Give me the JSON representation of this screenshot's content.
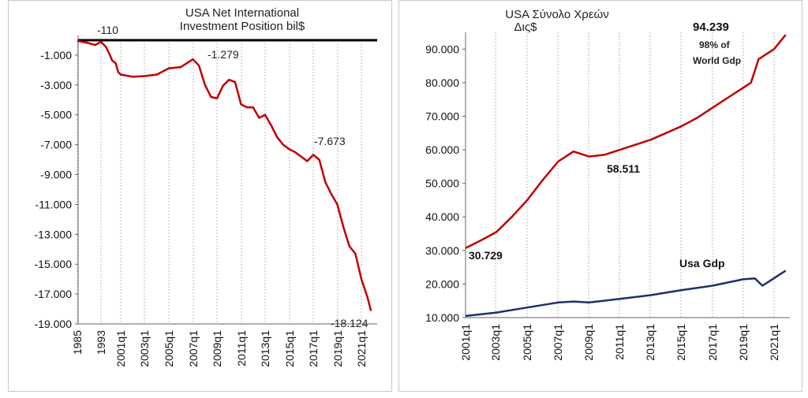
{
  "chart_data": [
    {
      "type": "line",
      "title_lines": [
        "USA    Net   International",
        "Investment  Position   bil$"
      ],
      "xlabel": "",
      "ylabel": "",
      "ylim": [
        -19000,
        0
      ],
      "y_ticks": [
        -1000,
        -3000,
        -5000,
        -7000,
        -9000,
        -11000,
        -13000,
        -15000,
        -17000,
        -19000
      ],
      "y_tick_labels": [
        "-1.000",
        "-3.000",
        "-5.000",
        "-7.000",
        "-9.000",
        "-11.000",
        "-13.000",
        "-15.000",
        "-17.000",
        "-19.000"
      ],
      "x_tick_labels": [
        "1985",
        "1993",
        "2001q1",
        "2003q1",
        "2005q1",
        "2007q1",
        "2009q1",
        "2011q1",
        "2013q1",
        "2015q1",
        "2017q1",
        "2019q1",
        "2021q1"
      ],
      "grid": "vertical",
      "annotations": [
        "-110",
        "-1.279",
        "-7.673",
        "-18.124"
      ],
      "colors": {
        "series": "#c00000",
        "zero_line": "#000000",
        "grid": "#bbbbbb"
      },
      "series": [
        {
          "points": [
            [
              1985,
              -50
            ],
            [
              1988,
              -160
            ],
            [
              1991,
              -320
            ],
            [
              1993,
              -110
            ],
            [
              1995,
              -450
            ],
            [
              1996.5,
              -950
            ],
            [
              1997.5,
              -1350
            ],
            [
              1999,
              -1550
            ],
            [
              2000,
              -2150
            ],
            [
              2001,
              -2300
            ],
            [
              2002,
              -2450
            ],
            [
              2003,
              -2400
            ],
            [
              2004,
              -2300
            ],
            [
              2005,
              -1880
            ],
            [
              2006,
              -1800
            ],
            [
              2007,
              -1279
            ],
            [
              2007.5,
              -1700
            ],
            [
              2008,
              -3000
            ],
            [
              2008.5,
              -3800
            ],
            [
              2009,
              -3900
            ],
            [
              2009.5,
              -3050
            ],
            [
              2010,
              -2650
            ],
            [
              2010.5,
              -2800
            ],
            [
              2011,
              -4300
            ],
            [
              2011.5,
              -4500
            ],
            [
              2012,
              -4500
            ],
            [
              2012.5,
              -5200
            ],
            [
              2013,
              -5000
            ],
            [
              2013.5,
              -5700
            ],
            [
              2014,
              -6500
            ],
            [
              2014.5,
              -7000
            ],
            [
              2015,
              -7300
            ],
            [
              2015.5,
              -7500
            ],
            [
              2016,
              -7800
            ],
            [
              2016.5,
              -8100
            ],
            [
              2017,
              -7673
            ],
            [
              2017.5,
              -8000
            ],
            [
              2018,
              -9500
            ],
            [
              2018.5,
              -10300
            ],
            [
              2019,
              -11000
            ],
            [
              2019.5,
              -12500
            ],
            [
              2020,
              -13800
            ],
            [
              2020.5,
              -14300
            ],
            [
              2021,
              -16000
            ],
            [
              2021.5,
              -17200
            ],
            [
              2021.8,
              -18124
            ]
          ]
        }
      ]
    },
    {
      "type": "line",
      "title_lines": [
        "USA  Σύνολο Χρεών",
        "Δις$"
      ],
      "xlabel": "",
      "ylabel": "",
      "ylim": [
        10000,
        95000
      ],
      "y_ticks": [
        10000,
        20000,
        30000,
        40000,
        50000,
        60000,
        70000,
        80000,
        90000
      ],
      "y_tick_labels": [
        "10.000",
        "20.000",
        "30.000",
        "40.000",
        "50.000",
        "60.000",
        "70.000",
        "80.000",
        "90.000"
      ],
      "x_tick_labels": [
        "2001q1",
        "2003q1",
        "2005q1",
        "2007q1",
        "2009q1",
        "2011q1",
        "2013q1",
        "2015q1",
        "2017q1",
        "2019q1",
        "2021q1"
      ],
      "grid": "vertical",
      "annotations": [
        "30.729",
        "58.511",
        "94.239",
        "98% of",
        "World Gdp",
        "Usa Gdp"
      ],
      "colors": {
        "debt": "#c00000",
        "gdp": "#1f2f6b",
        "grid": "#bbbbbb"
      },
      "series": [
        {
          "name": "",
          "points": [
            [
              2001,
              30729
            ],
            [
              2002,
              33000
            ],
            [
              2003,
              35500
            ],
            [
              2004,
              40000
            ],
            [
              2005,
              45000
            ],
            [
              2006,
              51000
            ],
            [
              2007,
              56500
            ],
            [
              2008,
              59500
            ],
            [
              2009,
              58000
            ],
            [
              2010,
              58511
            ],
            [
              2011,
              60000
            ],
            [
              2012,
              61500
            ],
            [
              2013,
              63000
            ],
            [
              2014,
              65000
            ],
            [
              2015,
              67000
            ],
            [
              2016,
              69500
            ],
            [
              2017,
              72500
            ],
            [
              2018,
              75500
            ],
            [
              2019,
              78500
            ],
            [
              2019.5,
              80000
            ],
            [
              2020,
              87000
            ],
            [
              2021,
              90000
            ],
            [
              2021.75,
              94239
            ]
          ]
        },
        {
          "name": "Usa Gdp",
          "points": [
            [
              2001,
              10500
            ],
            [
              2003,
              11500
            ],
            [
              2005,
              13000
            ],
            [
              2007,
              14500
            ],
            [
              2008,
              14800
            ],
            [
              2009,
              14500
            ],
            [
              2011,
              15600
            ],
            [
              2013,
              16700
            ],
            [
              2015,
              18200
            ],
            [
              2017,
              19500
            ],
            [
              2019,
              21400
            ],
            [
              2019.75,
              21700
            ],
            [
              2020.25,
              19500
            ],
            [
              2020.75,
              21000
            ],
            [
              2021.75,
              24000
            ]
          ]
        }
      ]
    }
  ]
}
